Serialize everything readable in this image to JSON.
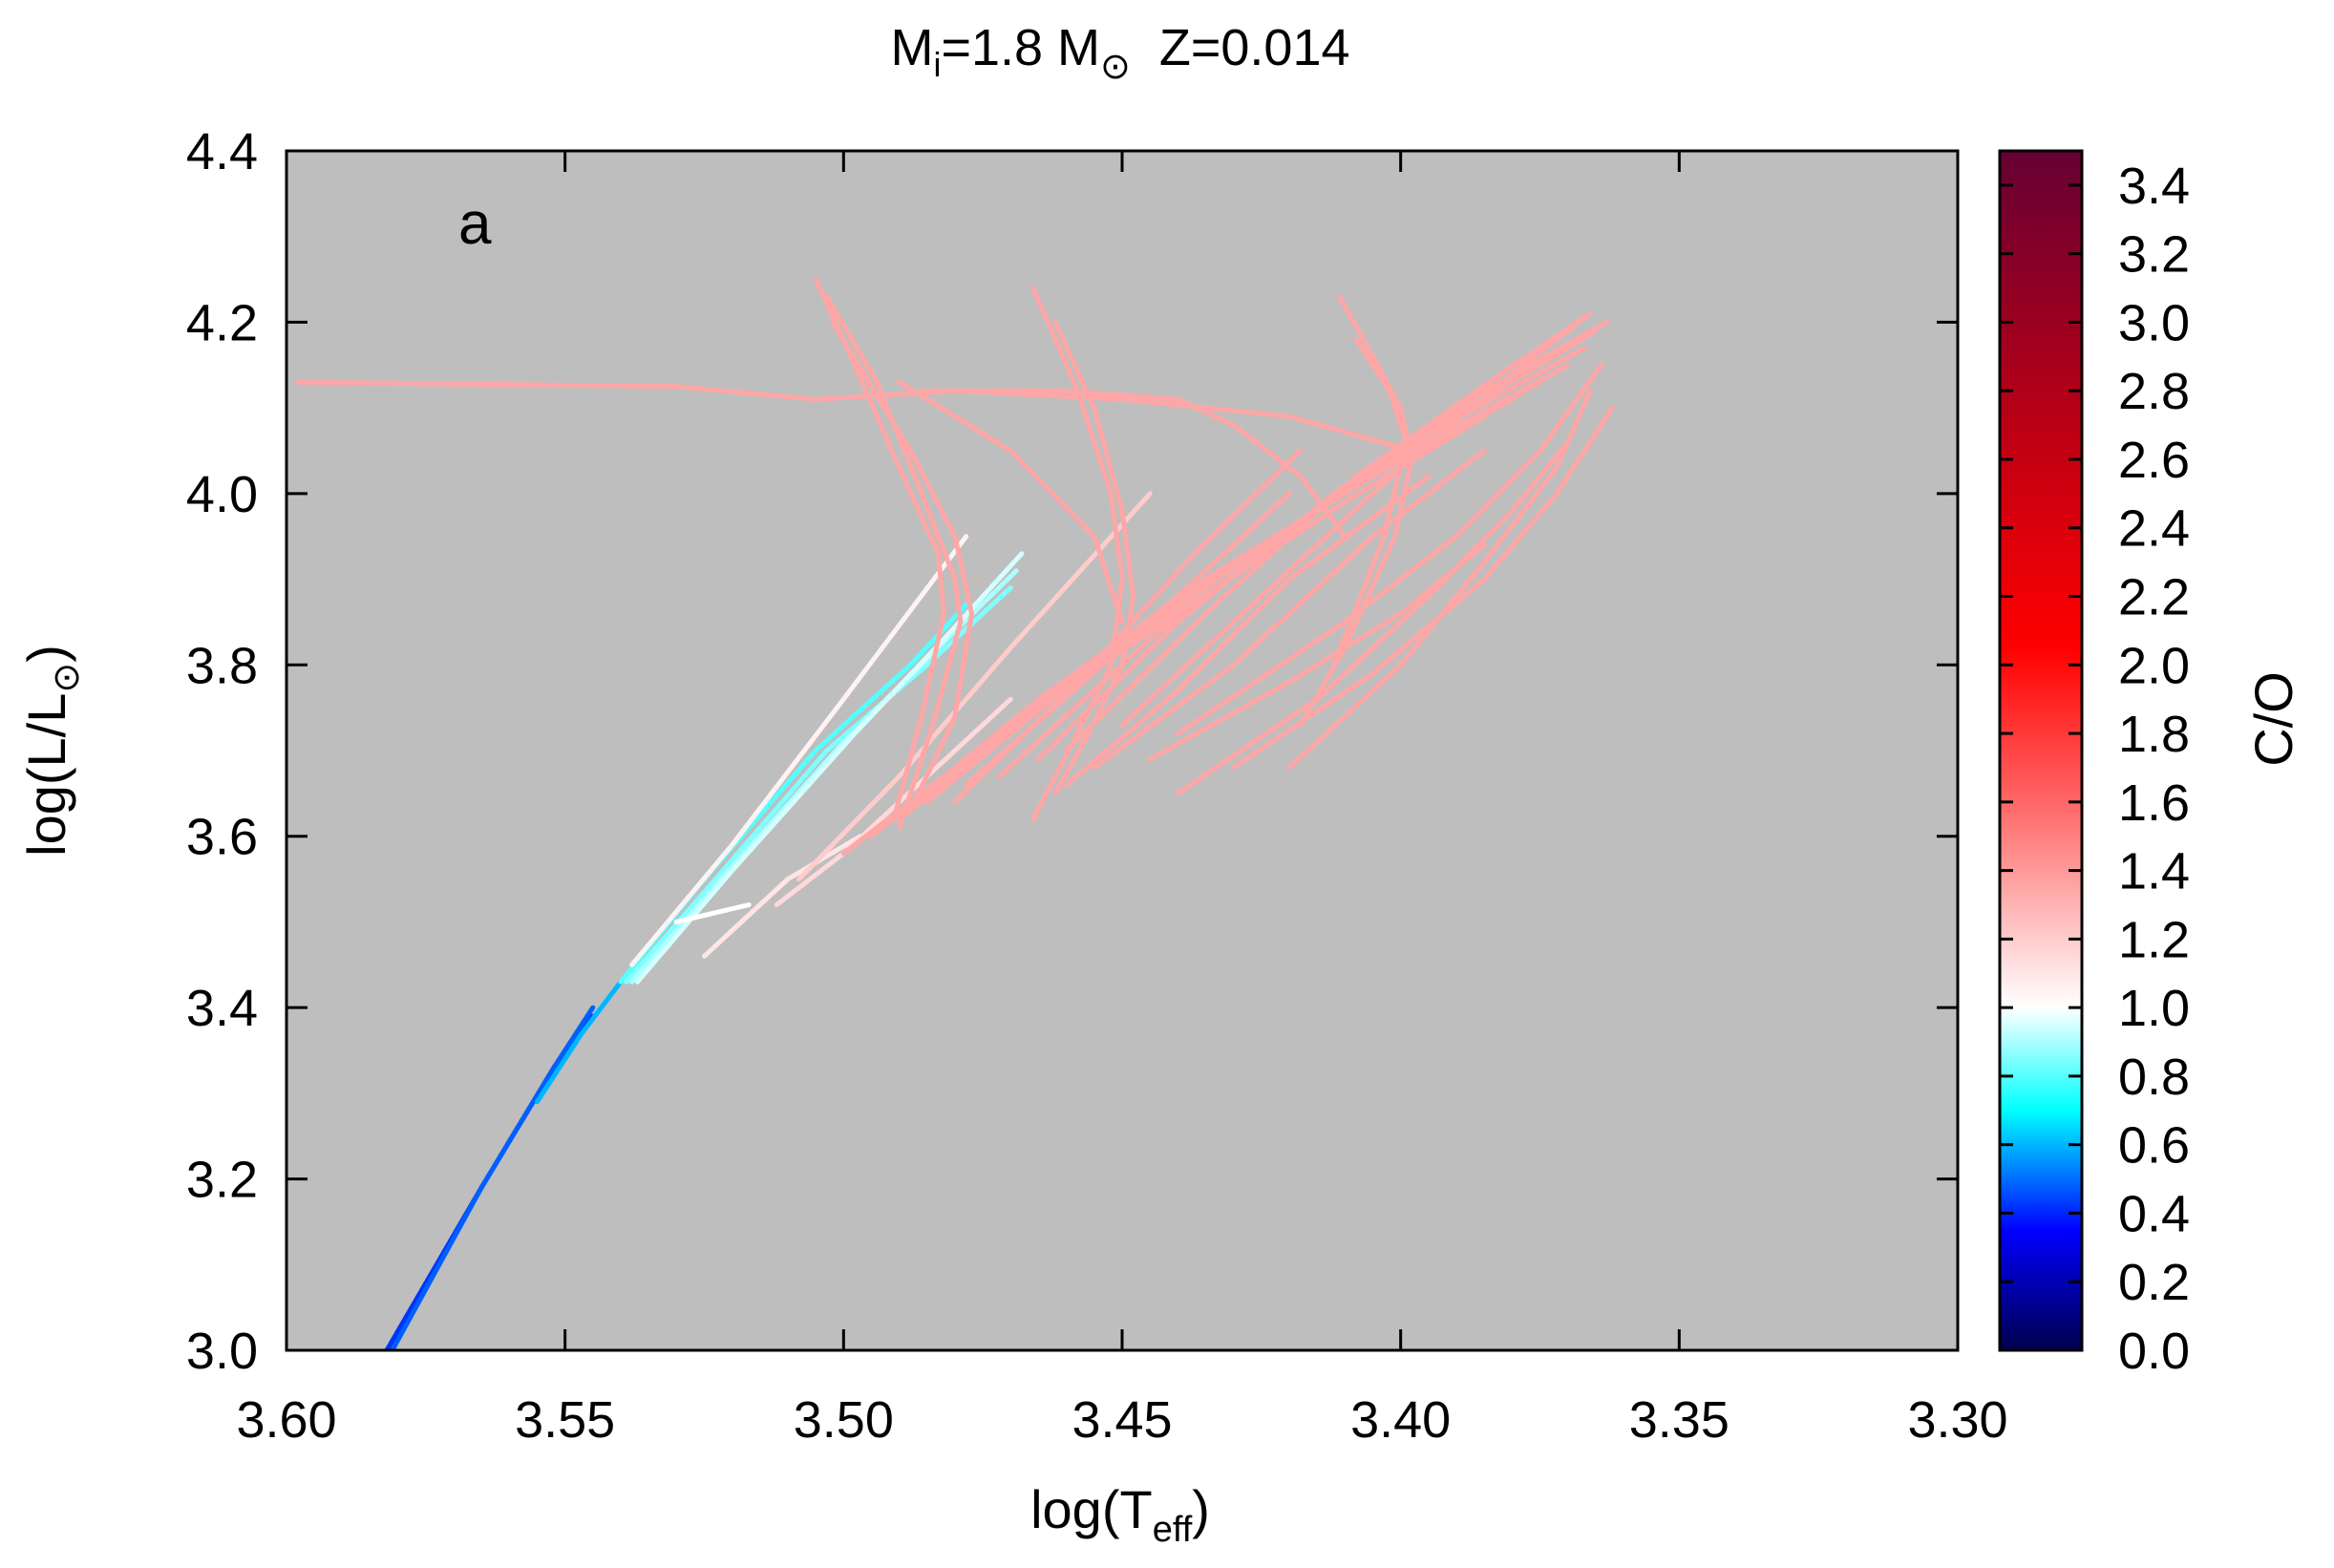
{
  "chart_data": {
    "type": "line",
    "title": {
      "m": "M",
      "sub": "i",
      "mid": "=1.8 M",
      "sun": "⊙",
      "z": "Z=0.014"
    },
    "panel_label": "a",
    "xlabel": {
      "main": "log(T",
      "sub": "eff",
      "close": ")"
    },
    "ylabel": {
      "main": "log(L/L",
      "sub": "⊙",
      "close": ")"
    },
    "colorbar_label": "C/O",
    "xlim": [
      3.6,
      3.3
    ],
    "ylim": [
      3.0,
      4.4
    ],
    "x_reversed": true,
    "x_ticks": [
      "3.60",
      "3.55",
      "3.50",
      "3.45",
      "3.40",
      "3.35",
      "3.30"
    ],
    "y_ticks": [
      "3.0",
      "3.2",
      "3.4",
      "3.6",
      "3.8",
      "4.0",
      "4.2",
      "4.4"
    ],
    "colorbar_ticks": [
      "0.0",
      "0.2",
      "0.4",
      "0.6",
      "0.8",
      "1.0",
      "1.2",
      "1.4",
      "1.6",
      "1.8",
      "2.0",
      "2.2",
      "2.4",
      "2.6",
      "2.8",
      "3.0",
      "3.2",
      "3.4"
    ],
    "colorbar_range": [
      0.0,
      3.5
    ],
    "colorbar_stops": [
      {
        "v": 0.0,
        "color": "#00004d"
      },
      {
        "v": 0.35,
        "color": "#0000ff"
      },
      {
        "v": 0.7,
        "color": "#00ffff"
      },
      {
        "v": 1.0,
        "color": "#ffffff"
      },
      {
        "v": 1.6,
        "color": "#ff6666"
      },
      {
        "v": 2.05,
        "color": "#ff0000"
      },
      {
        "v": 2.8,
        "color": "#b00018"
      },
      {
        "v": 3.5,
        "color": "#660033"
      }
    ],
    "background_color": "#bebebe",
    "grid": false,
    "series": [
      {
        "co": 0.42,
        "x": [
          3.582,
          3.565,
          3.552,
          3.545
        ],
        "y": [
          3.0,
          3.19,
          3.33,
          3.39
        ]
      },
      {
        "co": 0.48,
        "x": [
          3.581,
          3.565,
          3.552,
          3.545
        ],
        "y": [
          3.0,
          3.19,
          3.33,
          3.4
        ]
      },
      {
        "co": 0.6,
        "x": [
          3.555,
          3.547,
          3.54
        ],
        "y": [
          3.29,
          3.37,
          3.43
        ]
      },
      {
        "co": 0.8,
        "x": [
          3.54,
          3.525,
          3.505,
          3.488,
          3.478
        ],
        "y": [
          3.43,
          3.55,
          3.7,
          3.8,
          3.87
        ]
      },
      {
        "co": 0.85,
        "x": [
          3.539,
          3.523,
          3.503,
          3.485,
          3.47
        ],
        "y": [
          3.43,
          3.55,
          3.7,
          3.8,
          3.89
        ]
      },
      {
        "co": 0.9,
        "x": [
          3.538,
          3.522,
          3.5,
          3.483,
          3.469
        ],
        "y": [
          3.43,
          3.55,
          3.71,
          3.82,
          3.91
        ]
      },
      {
        "co": 0.95,
        "x": [
          3.537,
          3.52,
          3.498,
          3.482,
          3.468
        ],
        "y": [
          3.43,
          3.56,
          3.72,
          3.83,
          3.93
        ]
      },
      {
        "co": 1.05,
        "x": [
          3.538,
          3.52,
          3.5,
          3.478
        ],
        "y": [
          3.45,
          3.59,
          3.76,
          3.95
        ]
      },
      {
        "co": 1.0,
        "x": [
          3.53,
          3.517
        ],
        "y": [
          3.5,
          3.52
        ]
      },
      {
        "co": 1.1,
        "x": [
          3.525,
          3.51,
          3.497
        ],
        "y": [
          3.46,
          3.55,
          3.6
        ]
      },
      {
        "co": 1.15,
        "x": [
          3.512,
          3.5,
          3.485,
          3.47
        ],
        "y": [
          3.52,
          3.58,
          3.67,
          3.76
        ]
      },
      {
        "co": 1.2,
        "x": [
          3.508,
          3.49,
          3.47,
          3.445
        ],
        "y": [
          3.55,
          3.67,
          3.82,
          4.0
        ]
      },
      {
        "co": 1.35,
        "x": [
          3.598,
          3.53,
          3.505,
          3.48,
          3.45,
          3.42,
          3.398
        ],
        "y": [
          4.13,
          4.125,
          4.11,
          4.12,
          4.11,
          4.09,
          4.05
        ]
      },
      {
        "co": 1.35,
        "x": [
          3.505,
          3.498,
          3.49,
          3.483,
          3.482,
          3.486,
          3.491
        ],
        "y": [
          4.25,
          4.15,
          4.03,
          3.93,
          3.86,
          3.74,
          3.62
        ]
      },
      {
        "co": 1.35,
        "x": [
          3.503,
          3.494,
          3.486,
          3.48,
          3.479,
          3.484,
          3.49
        ],
        "y": [
          4.23,
          4.13,
          4.0,
          3.9,
          3.85,
          3.73,
          3.61
        ]
      },
      {
        "co": 1.35,
        "x": [
          3.502,
          3.488,
          3.48,
          3.477,
          3.48,
          3.488
        ],
        "y": [
          4.2,
          4.05,
          3.95,
          3.86,
          3.74,
          3.63
        ]
      },
      {
        "co": 1.35,
        "x": [
          3.466,
          3.458,
          3.452,
          3.45,
          3.452,
          3.458,
          3.466
        ],
        "y": [
          4.24,
          4.12,
          4.0,
          3.9,
          3.8,
          3.72,
          3.62
        ]
      },
      {
        "co": 1.35,
        "x": [
          3.462,
          3.455,
          3.45,
          3.448,
          3.45,
          3.456,
          3.462
        ],
        "y": [
          4.2,
          4.1,
          3.98,
          3.88,
          3.8,
          3.72,
          3.65
        ]
      },
      {
        "co": 1.35,
        "x": [
          3.486,
          3.46,
          3.44,
          3.43,
          3.418,
          3.41
        ],
        "y": [
          4.12,
          4.12,
          4.11,
          4.08,
          4.02,
          3.95
        ]
      },
      {
        "co": 1.35,
        "x": [
          3.49,
          3.47,
          3.455,
          3.45
        ],
        "y": [
          4.13,
          4.05,
          3.95,
          3.85
        ]
      },
      {
        "co": 1.35,
        "x": [
          3.411,
          3.405,
          3.4,
          3.398,
          3.401,
          3.41,
          3.418
        ],
        "y": [
          4.23,
          4.16,
          4.1,
          4.04,
          3.95,
          3.82,
          3.73
        ]
      },
      {
        "co": 1.35,
        "x": [
          3.408,
          3.402,
          3.399,
          3.403,
          3.412
        ],
        "y": [
          4.18,
          4.12,
          4.06,
          3.95,
          3.8
        ]
      },
      {
        "co": 1.35,
        "x": [
          3.5,
          3.47,
          3.44,
          3.41,
          3.385
        ],
        "y": [
          3.58,
          3.73,
          3.86,
          3.99,
          4.09
        ]
      },
      {
        "co": 1.35,
        "x": [
          3.495,
          3.465,
          3.435,
          3.405,
          3.38
        ],
        "y": [
          3.6,
          3.76,
          3.9,
          4.02,
          4.11
        ]
      },
      {
        "co": 1.35,
        "x": [
          3.49,
          3.46,
          3.43,
          3.4,
          3.375
        ],
        "y": [
          3.62,
          3.78,
          3.92,
          4.04,
          4.13
        ]
      },
      {
        "co": 1.35,
        "x": [
          3.485,
          3.455,
          3.425,
          3.395,
          3.37
        ],
        "y": [
          3.64,
          3.8,
          3.94,
          4.06,
          4.15
        ]
      },
      {
        "co": 1.35,
        "x": [
          3.478,
          3.45,
          3.42,
          3.392,
          3.367
        ],
        "y": [
          3.66,
          3.82,
          3.96,
          4.08,
          4.17
        ]
      },
      {
        "co": 1.35,
        "x": [
          3.472,
          3.445,
          3.415,
          3.388,
          3.365
        ],
        "y": [
          3.67,
          3.83,
          3.98,
          4.1,
          4.19
        ]
      },
      {
        "co": 1.35,
        "x": [
          3.465,
          3.44,
          3.412,
          3.385,
          3.363
        ],
        "y": [
          3.69,
          3.85,
          4.0,
          4.12,
          4.2
        ]
      },
      {
        "co": 1.35,
        "x": [
          3.46,
          3.435,
          3.408,
          3.382,
          3.366
        ],
        "y": [
          3.7,
          3.86,
          4.02,
          4.14,
          4.21
        ]
      },
      {
        "co": 1.35,
        "x": [
          3.45,
          3.425,
          3.4,
          3.38,
          3.368
        ],
        "y": [
          3.73,
          3.88,
          4.03,
          4.14,
          4.2
        ]
      },
      {
        "co": 1.35,
        "x": [
          3.488,
          3.465,
          3.44,
          3.42
        ],
        "y": [
          3.63,
          3.75,
          3.88,
          4.0
        ]
      },
      {
        "co": 1.35,
        "x": [
          3.48,
          3.458,
          3.437,
          3.418
        ],
        "y": [
          3.64,
          3.78,
          3.93,
          4.05
        ]
      },
      {
        "co": 1.35,
        "x": [
          3.445,
          3.42,
          3.4,
          3.385
        ],
        "y": [
          3.69,
          3.78,
          3.86,
          3.94
        ]
      },
      {
        "co": 1.35,
        "x": [
          3.44,
          3.41,
          3.39,
          3.375,
          3.364
        ],
        "y": [
          3.72,
          3.85,
          3.95,
          4.05,
          4.15
        ]
      },
      {
        "co": 1.35,
        "x": [
          3.43,
          3.405,
          3.385,
          3.372,
          3.362
        ],
        "y": [
          3.68,
          3.79,
          3.9,
          4.0,
          4.1
        ]
      },
      {
        "co": 1.35,
        "x": [
          3.44,
          3.415,
          3.395,
          3.38,
          3.37
        ],
        "y": [
          3.65,
          3.76,
          3.88,
          3.98,
          4.06
        ]
      },
      {
        "co": 1.35,
        "x": [
          3.42,
          3.4,
          3.385,
          3.372,
          3.366
        ],
        "y": [
          3.68,
          3.8,
          3.92,
          4.03,
          4.12
        ]
      },
      {
        "co": 1.35,
        "x": [
          3.455,
          3.43,
          3.405,
          3.385
        ],
        "y": [
          3.68,
          3.8,
          3.95,
          4.05
        ]
      },
      {
        "co": 1.35,
        "x": [
          3.46,
          3.44,
          3.42,
          3.395
        ],
        "y": [
          3.66,
          3.77,
          3.9,
          4.02
        ]
      }
    ]
  }
}
